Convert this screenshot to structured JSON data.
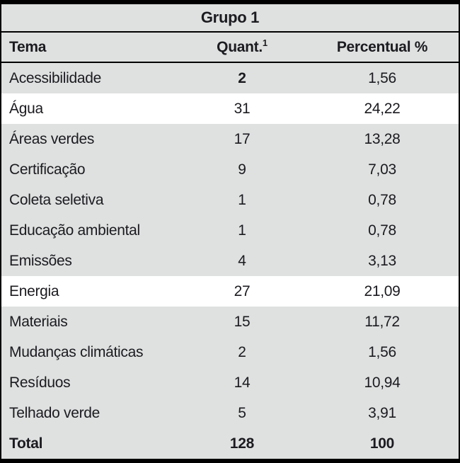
{
  "table": {
    "group_title": "Grupo 1",
    "header": {
      "tema": "Tema",
      "quant_base": "Quant.",
      "quant_footnote_mark": "1",
      "percentual": "Percentual %"
    },
    "rows": [
      {
        "tema": "Acessibilidade",
        "quant": "2",
        "percentual": "1,56",
        "bg": "gray",
        "quant_bold": true,
        "bold": false
      },
      {
        "tema": "Água",
        "quant": "31",
        "percentual": "24,22",
        "bg": "white",
        "quant_bold": false,
        "bold": false
      },
      {
        "tema": "Áreas verdes",
        "quant": "17",
        "percentual": "13,28",
        "bg": "gray",
        "quant_bold": false,
        "bold": false
      },
      {
        "tema": "Certificação",
        "quant": "9",
        "percentual": "7,03",
        "bg": "gray",
        "quant_bold": false,
        "bold": false
      },
      {
        "tema": "Coleta seletiva",
        "quant": "1",
        "percentual": "0,78",
        "bg": "gray",
        "quant_bold": false,
        "bold": false
      },
      {
        "tema": "Educação ambiental",
        "quant": "1",
        "percentual": "0,78",
        "bg": "gray",
        "quant_bold": false,
        "bold": false
      },
      {
        "tema": "Emissões",
        "quant": "4",
        "percentual": "3,13",
        "bg": "gray",
        "quant_bold": false,
        "bold": false
      },
      {
        "tema": "Energia",
        "quant": "27",
        "percentual": "21,09",
        "bg": "white",
        "quant_bold": false,
        "bold": false
      },
      {
        "tema": "Materiais",
        "quant": "15",
        "percentual": "11,72",
        "bg": "gray",
        "quant_bold": false,
        "bold": false
      },
      {
        "tema": "Mudanças climáticas",
        "quant": "2",
        "percentual": "1,56",
        "bg": "gray",
        "quant_bold": false,
        "bold": false
      },
      {
        "tema": "Resíduos",
        "quant": "14",
        "percentual": "10,94",
        "bg": "gray",
        "quant_bold": false,
        "bold": false
      },
      {
        "tema": "Telhado verde",
        "quant": "5",
        "percentual": "3,91",
        "bg": "gray",
        "quant_bold": false,
        "bold": false
      },
      {
        "tema": "Total",
        "quant": "128",
        "percentual": "100",
        "bg": "gray",
        "quant_bold": false,
        "bold": true
      }
    ]
  },
  "colors": {
    "row_gray": "#dfe1e0",
    "row_white": "#ffffff",
    "border": "#000000",
    "text": "#1b1b20"
  }
}
